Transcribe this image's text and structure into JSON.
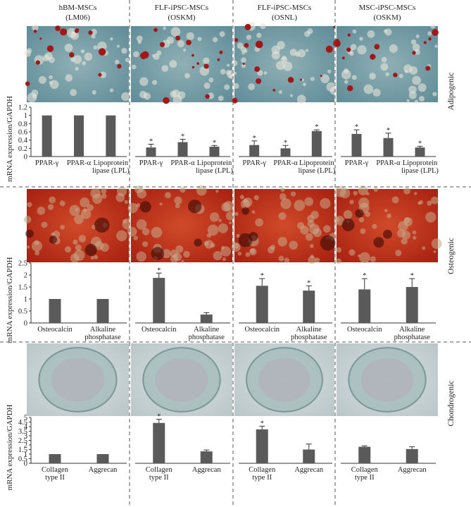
{
  "columns": [
    {
      "title": "hBM-MSCs",
      "subtitle": "(LM06)"
    },
    {
      "title": "FLF-iPSC-MSCs",
      "subtitle": "(OSKM)"
    },
    {
      "title": "FLF-iPSC-MSCs",
      "subtitle": "(OSNL)"
    },
    {
      "title": "MSC-iPSC-MSCs",
      "subtitle": "(OSKM)"
    }
  ],
  "rows": [
    "Adipogenic",
    "Osteogenic",
    "Chondrogenic"
  ],
  "chart_data": [
    {
      "type": "bar",
      "ylabel": "mRNA expression/GAPDH",
      "categories": [
        "PPAR-γ",
        "PPAR-α",
        "Lipoprotein lipase (LPL)"
      ],
      "values": [
        1,
        1,
        1
      ],
      "color": "#5a5a5a",
      "ylim": [
        0,
        1.2
      ],
      "yticks": [
        0,
        0.2,
        0.4,
        0.6,
        0.8,
        1,
        1.2
      ]
    },
    {
      "type": "bar",
      "categories": [
        "PPAR-γ",
        "PPAR-α",
        "Lipoprotein lipase (LPL)"
      ],
      "values": [
        0.22,
        0.35,
        0.24
      ],
      "errors": [
        0.08,
        0.07,
        0.03
      ],
      "annotations": [
        "*",
        "*",
        "*"
      ],
      "color": "#5a5a5a",
      "ylim": [
        0,
        1.2
      ]
    },
    {
      "type": "bar",
      "categories": [
        "PPAR-γ",
        "PPAR-α",
        "Lipoprotein lipase (LPL)"
      ],
      "values": [
        0.28,
        0.2,
        0.62
      ],
      "errors": [
        0.1,
        0.07,
        0.03
      ],
      "annotations": [
        "*",
        "*",
        "*"
      ],
      "color": "#5a5a5a",
      "ylim": [
        0,
        1.2
      ]
    },
    {
      "type": "bar",
      "categories": [
        "PPAR-γ",
        "PPAR-α",
        "Lipoprotein lipase (LPL)"
      ],
      "values": [
        0.55,
        0.45,
        0.22
      ],
      "errors": [
        0.1,
        0.12,
        0.03
      ],
      "annotations": [
        "*",
        "*",
        "*"
      ],
      "color": "#5a5a5a",
      "ylim": [
        0,
        1.2
      ]
    },
    {
      "type": "bar",
      "ylabel": "mRNA expression/GAPDH",
      "categories": [
        "Osteocalcin",
        "Alkaline phosphatase"
      ],
      "values": [
        1,
        1
      ],
      "color": "#5a5a5a",
      "ylim": [
        0,
        2.5
      ],
      "yticks": [
        0,
        0.5,
        1,
        1.5,
        2,
        2.5
      ]
    },
    {
      "type": "bar",
      "categories": [
        "Osteocalcin",
        "Alkaline phosphatase"
      ],
      "values": [
        1.88,
        0.35
      ],
      "errors": [
        0.2,
        0.08
      ],
      "annotations": [
        "*",
        null
      ],
      "color": "#5a5a5a",
      "ylim": [
        0,
        2.5
      ]
    },
    {
      "type": "bar",
      "categories": [
        "Osteocalcin",
        "Alkaline phosphatase"
      ],
      "values": [
        1.55,
        1.35
      ],
      "errors": [
        0.3,
        0.2
      ],
      "annotations": [
        "*",
        "*"
      ],
      "color": "#5a5a5a",
      "ylim": [
        0,
        2.5
      ]
    },
    {
      "type": "bar",
      "categories": [
        "Osteocalcin",
        "Alkaline phosphatase"
      ],
      "values": [
        1.4,
        1.5
      ],
      "errors": [
        0.45,
        0.35
      ],
      "annotations": [
        "*",
        "*"
      ],
      "color": "#5a5a5a",
      "ylim": [
        0,
        2.5
      ]
    },
    {
      "type": "bar",
      "ylabel": "mRNA expression/GAPDH",
      "categories": [
        "Collagen type II",
        "Aggrecan"
      ],
      "values": [
        1,
        1
      ],
      "color": "#5a5a5a",
      "ylim": [
        0,
        5
      ],
      "yticks": [
        0,
        0.5,
        1,
        1.5,
        2,
        2.5,
        3,
        3.5,
        4,
        4.5,
        5
      ]
    },
    {
      "type": "bar",
      "categories": [
        "Collagen type II",
        "Aggrecan"
      ],
      "values": [
        4.4,
        1.3
      ],
      "errors": [
        0.4,
        0.15
      ],
      "annotations": [
        "*",
        null
      ],
      "color": "#5a5a5a",
      "ylim": [
        0,
        5
      ]
    },
    {
      "type": "bar",
      "categories": [
        "Collagen type II",
        "Aggrecan"
      ],
      "values": [
        3.7,
        1.5
      ],
      "errors": [
        0.35,
        0.6
      ],
      "annotations": [
        "*",
        null
      ],
      "color": "#5a5a5a",
      "ylim": [
        0,
        5
      ]
    },
    {
      "type": "bar",
      "categories": [
        "Collagen type II",
        "Aggrecan"
      ],
      "values": [
        1.8,
        1.55
      ],
      "errors": [
        0.1,
        0.25
      ],
      "color": "#5a5a5a",
      "ylim": [
        0,
        5
      ]
    }
  ]
}
